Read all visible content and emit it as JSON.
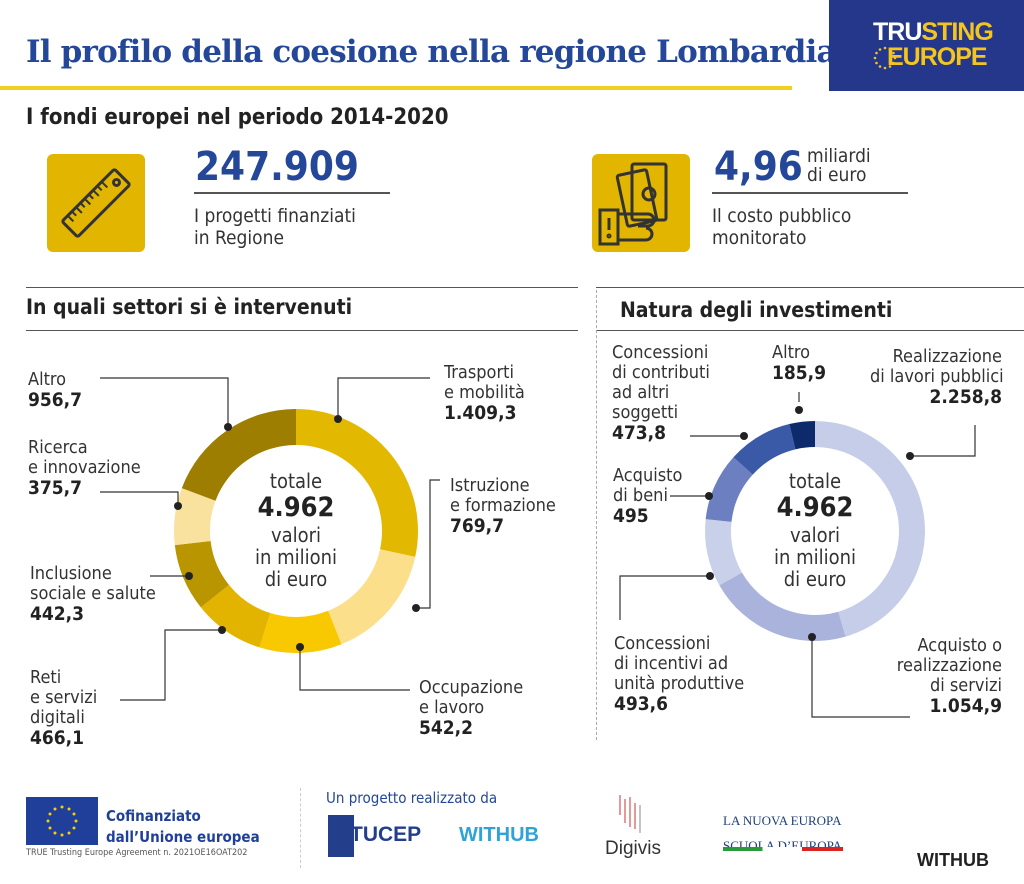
{
  "header": {
    "title": "Il profilo della coesione nella regione Lombardia",
    "logo_line1_a": "TRU",
    "logo_line1_b": "STING",
    "logo_line2": "EUROPE"
  },
  "subtitle": "I fondi europei nel periodo 2014-2020",
  "kpis": [
    {
      "icon": "ruler-icon",
      "value": "247.909",
      "unit": "",
      "desc1": "I progetti finanziati",
      "desc2": "in Regione"
    },
    {
      "icon": "money-hand-icon",
      "value": "4,96",
      "unit1": "miliardi",
      "unit2": "di euro",
      "desc1": "Il costo pubblico",
      "desc2": "monitorato"
    }
  ],
  "chart_data": [
    {
      "type": "pie",
      "title": "In quali settori si è intervenuti",
      "center": {
        "label": "totale",
        "total": "4.962",
        "unit1": "valori",
        "unit2": "in milioni",
        "unit3": "di euro"
      },
      "categories": [
        "Trasporti e mobilità",
        "Istruzione e formazione",
        "Occupazione e lavoro",
        "Reti e servizi digitali",
        "Inclusione sociale e salute",
        "Ricerca e innovazione",
        "Altro"
      ],
      "values": [
        1409.3,
        769.7,
        542.2,
        466.1,
        442.3,
        375.7,
        956.7
      ],
      "labels": [
        "1.409,3",
        "769,7",
        "542,2",
        "466,1",
        "442,3",
        "375,7",
        "956,7"
      ],
      "colors": [
        "#e3b800",
        "#fbdf8a",
        "#f8c900",
        "#e2b400",
        "#b99500",
        "#f9e29e",
        "#9d7e00"
      ]
    },
    {
      "type": "pie",
      "title": "Natura degli investimenti",
      "center": {
        "label": "totale",
        "total": "4.962",
        "unit1": "valori",
        "unit2": "in milioni",
        "unit3": "di euro"
      },
      "categories": [
        "Realizzazione di lavori pubblici",
        "Acquisto o realizzazione di servizi",
        "Concessioni di incentivi ad unità produttive",
        "Acquisto di beni",
        "Concessioni di contributi ad altri soggetti",
        "Altro"
      ],
      "values": [
        2258.8,
        1054.9,
        493.6,
        495,
        473.8,
        185.9
      ],
      "labels": [
        "2.258,8",
        "1.054,9",
        "493,6",
        "495",
        "473,8",
        "185,9"
      ],
      "colors": [
        "#c6cde9",
        "#a9b3dc",
        "#c9d0ea",
        "#6c80c1",
        "#3a5aa8",
        "#0d2a6b"
      ]
    }
  ],
  "text": {
    "l0a": "Trasporti",
    "l0b": "e mobilità",
    "l1a": "Istruzione",
    "l1b": "e formazione",
    "l2a": "Occupazione",
    "l2b": "e lavoro",
    "l3a": "Reti",
    "l3b": "e servizi",
    "l3c": "digitali",
    "l4a": "Inclusione",
    "l4b": "sociale e salute",
    "l5a": "Ricerca",
    "l5b": "e innovazione",
    "l6a": "Altro",
    "r0a": "Realizzazione",
    "r0b": "di lavori pubblici",
    "r1a": "Acquisto o",
    "r1b": "realizzazione",
    "r1c": "di servizi",
    "r2a": "Concessioni",
    "r2b": "di incentivi ad",
    "r2c": "unità produttive",
    "r3a": "Acquisto",
    "r3b": "di beni",
    "r4a": "Concessioni",
    "r4b": "di contributi",
    "r4c": "ad altri",
    "r4d": "soggetti",
    "r5a": "Altro"
  },
  "footer": {
    "eu1": "Cofinanziato",
    "eu2": "dall’Unione europea",
    "agreement": "TRUE Trusting Europe Agreement n. 2021OE16OAT202",
    "project": "Un progetto realizzato da",
    "tucep": "TUCEP",
    "withub": "WITHUB",
    "digivis": "Digivis",
    "lne1": "LA NUOVA EUROPA",
    "lne2": "SCUOLA D’EUROPA",
    "withub2": "WITHUB"
  }
}
